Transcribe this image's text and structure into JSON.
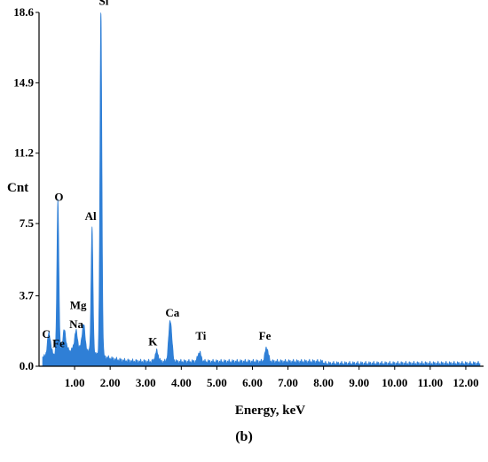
{
  "chart_data": {
    "type": "line",
    "title": "",
    "xlabel": "Energy, keV",
    "ylabel": "Cnt",
    "xlim": [
      0,
      12.5
    ],
    "ylim": [
      0,
      18.6
    ],
    "x_ticks": [
      1.0,
      2.0,
      3.0,
      4.0,
      5.0,
      6.0,
      7.0,
      8.0,
      9.0,
      10.0,
      11.0,
      12.0
    ],
    "x_tick_labels": [
      "1.00",
      "2.00",
      "3.00",
      "4.00",
      "5.00",
      "6.00",
      "7.00",
      "8.00",
      "9.00",
      "10.00",
      "11.00",
      "12.00"
    ],
    "y_ticks": [
      0.0,
      3.7,
      7.5,
      11.2,
      14.9,
      18.6
    ],
    "y_tick_labels": [
      "0.0",
      "3.7",
      "7.5",
      "11.2",
      "14.9",
      "18.6"
    ],
    "grid": false,
    "series_color": "#2f7fd6",
    "baseline": 0.25,
    "peaks": [
      {
        "label": "C",
        "energy": 0.28,
        "height": 1.2
      },
      {
        "label": "O",
        "energy": 0.53,
        "height": 8.2
      },
      {
        "label": "Fe",
        "energy": 0.71,
        "height": 1.1
      },
      {
        "label": "Na",
        "energy": 1.04,
        "height": 1.0
      },
      {
        "label": "Mg",
        "energy": 1.25,
        "height": 1.4
      },
      {
        "label": "Al",
        "energy": 1.49,
        "height": 6.6
      },
      {
        "label": "Si",
        "energy": 1.74,
        "height": 18.4
      },
      {
        "label": "K",
        "energy": 3.31,
        "height": 0.55
      },
      {
        "label": "Ca",
        "energy": 3.69,
        "height": 2.2
      },
      {
        "label": "Ti",
        "energy": 4.51,
        "height": 0.5
      },
      {
        "label": "Fe",
        "energy": 6.4,
        "height": 0.75
      }
    ],
    "annotations": [
      {
        "text": "Si",
        "x": 1.82,
        "y": 19.0
      },
      {
        "text": "O",
        "x": 0.56,
        "y": 8.7
      },
      {
        "text": "Al",
        "x": 1.45,
        "y": 7.7
      },
      {
        "text": "Mg",
        "x": 1.1,
        "y": 3.0
      },
      {
        "text": "Na",
        "x": 1.05,
        "y": 2.0
      },
      {
        "text": "Fe",
        "x": 0.55,
        "y": 1.0
      },
      {
        "text": "C",
        "x": 0.2,
        "y": 1.5
      },
      {
        "text": "Ca",
        "x": 3.75,
        "y": 2.6
      },
      {
        "text": "K",
        "x": 3.2,
        "y": 1.1
      },
      {
        "text": "Ti",
        "x": 4.55,
        "y": 1.4
      },
      {
        "text": "Fe",
        "x": 6.35,
        "y": 1.4
      }
    ]
  },
  "caption": "(b)"
}
